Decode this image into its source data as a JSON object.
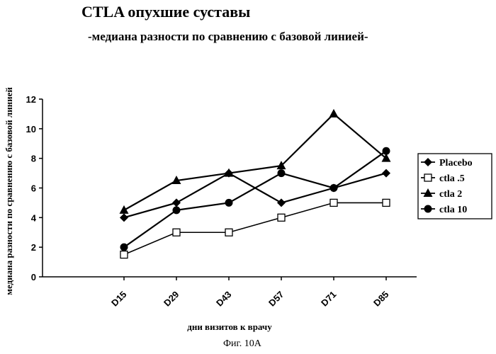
{
  "figure": {
    "caption": "Фиг. 10А"
  },
  "chart_data": {
    "type": "line",
    "title": "CTLA опухшие суставы",
    "subtitle": "-медиана разности по сравнению с базовой линией-",
    "xlabel": "дни визитов к врачу",
    "ylabel": "медиана разности по сравнению с базовой линией",
    "categories": [
      "D15",
      "D29",
      "D43",
      "D57",
      "D71",
      "D85"
    ],
    "ylim": [
      0,
      12
    ],
    "yticks": [
      "0",
      "2",
      "4",
      "6",
      "8",
      "10",
      "12"
    ],
    "grid": false,
    "legend_position": "right",
    "series": [
      {
        "name": "Placebo",
        "marker": "diamond",
        "values": [
          4.0,
          5.0,
          7.0,
          5.0,
          6.0,
          7.0
        ],
        "color": "#000000"
      },
      {
        "name": "ctla .5",
        "marker": "open-square",
        "values": [
          1.5,
          3.0,
          3.0,
          4.0,
          5.0,
          5.0
        ],
        "color": "#000000"
      },
      {
        "name": "ctla 2",
        "marker": "triangle",
        "values": [
          4.5,
          6.5,
          7.0,
          7.5,
          11.0,
          8.0
        ],
        "color": "#000000"
      },
      {
        "name": "ctla 10",
        "marker": "circle",
        "values": [
          2.0,
          4.5,
          5.0,
          7.0,
          6.0,
          8.5
        ],
        "color": "#000000"
      }
    ]
  }
}
